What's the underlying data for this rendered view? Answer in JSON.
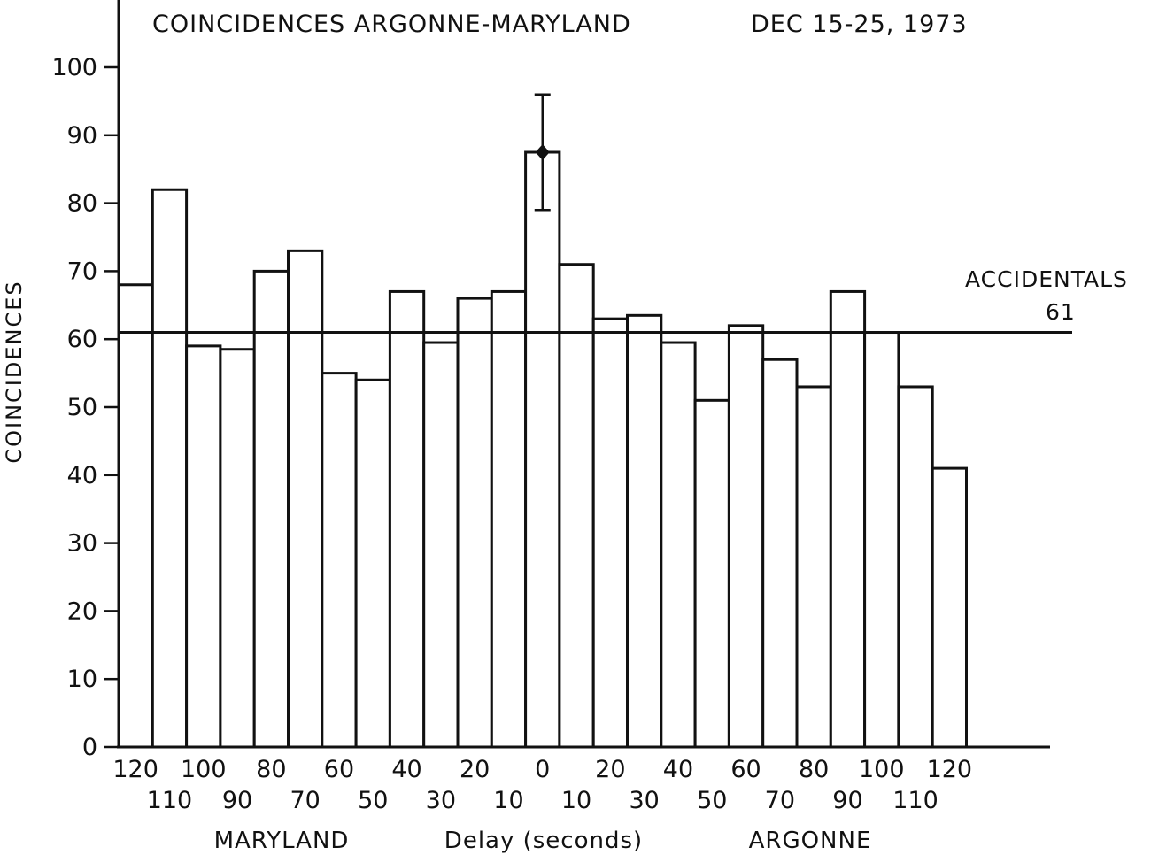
{
  "chart_data": {
    "type": "bar",
    "title": "COINCIDENCES ARGONNE-MARYLAND",
    "date": "DEC 15-25, 1973",
    "ylabel": "COINCIDENCES",
    "xlabel": "Delay (seconds)",
    "ylim": [
      0,
      100
    ],
    "yticks": [
      0,
      10,
      20,
      30,
      40,
      50,
      60,
      70,
      80,
      90,
      100
    ],
    "grid": false,
    "region_labels": {
      "left": "MARYLAND",
      "right": "ARGONNE"
    },
    "categories": [
      "120",
      "110",
      "100",
      "90",
      "80",
      "70",
      "60",
      "50",
      "40",
      "30",
      "20",
      "10",
      "0",
      "10",
      "20",
      "30",
      "40",
      "50",
      "60",
      "70",
      "80",
      "90",
      "100",
      "110",
      "120"
    ],
    "values": [
      68,
      82,
      59,
      58.5,
      70,
      73,
      55,
      54,
      67,
      59.5,
      66,
      67,
      87.5,
      71,
      63,
      63.5,
      59.5,
      51,
      62,
      57,
      53,
      67,
      61,
      53,
      41
    ],
    "error_bar": {
      "category_index": 12,
      "value": 87.5,
      "low": 79,
      "high": 96
    },
    "reference_line": {
      "label": "ACCIDENTALS",
      "value_label": "61",
      "value": 61
    }
  }
}
